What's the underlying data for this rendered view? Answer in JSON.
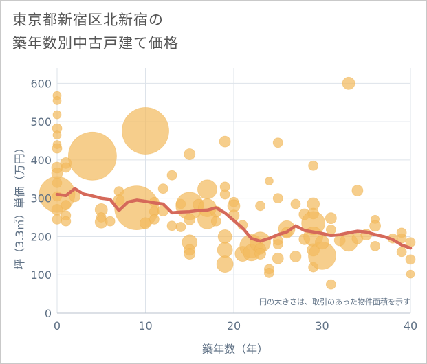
{
  "title": {
    "line1": "東京都新宿区北新宿の",
    "line2": "築年数別中古戸建て価格"
  },
  "chart_data": {
    "type": "scatter",
    "xlabel": "築年数（年）",
    "ylabel": "坪（3.3㎡）単価（万円）",
    "xlim": [
      0,
      40
    ],
    "ylim": [
      0,
      640
    ],
    "xticks": [
      0,
      10,
      20,
      30,
      40
    ],
    "yticks": [
      0,
      100,
      200,
      300,
      400,
      500,
      600
    ],
    "grid": true,
    "annotation": "円の大きさは、取引のあった物件面積を示す",
    "colors": {
      "bubble": "#f3bb60",
      "line": "#d5695a",
      "grid": "#dde3ea",
      "axis_text": "#5f7185"
    },
    "bubbles": [
      {
        "x": 0,
        "y": 568,
        "s": 6
      },
      {
        "x": 0,
        "y": 555,
        "s": 6
      },
      {
        "x": 0,
        "y": 518,
        "s": 6
      },
      {
        "x": 0,
        "y": 482,
        "s": 7
      },
      {
        "x": 0,
        "y": 465,
        "s": 6
      },
      {
        "x": 0,
        "y": 440,
        "s": 6
      },
      {
        "x": 0,
        "y": 430,
        "s": 7
      },
      {
        "x": 0,
        "y": 380,
        "s": 8
      },
      {
        "x": 0,
        "y": 365,
        "s": 8
      },
      {
        "x": 0,
        "y": 340,
        "s": 7
      },
      {
        "x": 0,
        "y": 305,
        "s": 7
      },
      {
        "x": 0,
        "y": 270,
        "s": 8
      },
      {
        "x": 0,
        "y": 245,
        "s": 7
      },
      {
        "x": 0,
        "y": 310,
        "s": 26
      },
      {
        "x": 1,
        "y": 392,
        "s": 8
      },
      {
        "x": 1,
        "y": 380,
        "s": 7
      },
      {
        "x": 1,
        "y": 282,
        "s": 7
      },
      {
        "x": 1,
        "y": 255,
        "s": 7
      },
      {
        "x": 1,
        "y": 240,
        "s": 7
      },
      {
        "x": 2,
        "y": 305,
        "s": 8
      },
      {
        "x": 4,
        "y": 410,
        "s": 35
      },
      {
        "x": 5,
        "y": 270,
        "s": 9
      },
      {
        "x": 5,
        "y": 250,
        "s": 7
      },
      {
        "x": 5,
        "y": 238,
        "s": 9
      },
      {
        "x": 6,
        "y": 240,
        "s": 7
      },
      {
        "x": 7,
        "y": 318,
        "s": 7
      },
      {
        "x": 7,
        "y": 295,
        "s": 8
      },
      {
        "x": 9,
        "y": 275,
        "s": 32
      },
      {
        "x": 10,
        "y": 476,
        "s": 34
      },
      {
        "x": 10,
        "y": 235,
        "s": 8
      },
      {
        "x": 11,
        "y": 290,
        "s": 7
      },
      {
        "x": 11,
        "y": 265,
        "s": 7
      },
      {
        "x": 11,
        "y": 245,
        "s": 7
      },
      {
        "x": 12,
        "y": 325,
        "s": 7
      },
      {
        "x": 12,
        "y": 268,
        "s": 8
      },
      {
        "x": 13,
        "y": 360,
        "s": 7
      },
      {
        "x": 13,
        "y": 228,
        "s": 7
      },
      {
        "x": 14,
        "y": 285,
        "s": 7
      },
      {
        "x": 14,
        "y": 225,
        "s": 7
      },
      {
        "x": 15,
        "y": 415,
        "s": 8
      },
      {
        "x": 15,
        "y": 280,
        "s": 20
      },
      {
        "x": 15,
        "y": 245,
        "s": 8
      },
      {
        "x": 15,
        "y": 185,
        "s": 11
      },
      {
        "x": 15,
        "y": 165,
        "s": 8
      },
      {
        "x": 15,
        "y": 155,
        "s": 8
      },
      {
        "x": 16,
        "y": 283,
        "s": 8
      },
      {
        "x": 17,
        "y": 323,
        "s": 14
      },
      {
        "x": 17,
        "y": 275,
        "s": 13
      },
      {
        "x": 17,
        "y": 245,
        "s": 14
      },
      {
        "x": 18,
        "y": 265,
        "s": 8
      },
      {
        "x": 18,
        "y": 240,
        "s": 7
      },
      {
        "x": 19,
        "y": 448,
        "s": 8
      },
      {
        "x": 19,
        "y": 330,
        "s": 7
      },
      {
        "x": 19,
        "y": 310,
        "s": 7
      },
      {
        "x": 19,
        "y": 200,
        "s": 10
      },
      {
        "x": 19,
        "y": 165,
        "s": 11
      },
      {
        "x": 19,
        "y": 128,
        "s": 12
      },
      {
        "x": 20,
        "y": 290,
        "s": 7
      },
      {
        "x": 20,
        "y": 280,
        "s": 9
      },
      {
        "x": 20,
        "y": 255,
        "s": 8
      },
      {
        "x": 21,
        "y": 230,
        "s": 7
      },
      {
        "x": 21,
        "y": 155,
        "s": 11
      },
      {
        "x": 22,
        "y": 175,
        "s": 17
      },
      {
        "x": 22,
        "y": 158,
        "s": 12
      },
      {
        "x": 23,
        "y": 280,
        "s": 7
      },
      {
        "x": 23,
        "y": 185,
        "s": 15
      },
      {
        "x": 23,
        "y": 168,
        "s": 8
      },
      {
        "x": 23,
        "y": 155,
        "s": 8
      },
      {
        "x": 24,
        "y": 345,
        "s": 6
      },
      {
        "x": 24,
        "y": 115,
        "s": 7
      },
      {
        "x": 24,
        "y": 105,
        "s": 7
      },
      {
        "x": 25,
        "y": 445,
        "s": 7
      },
      {
        "x": 25,
        "y": 300,
        "s": 7
      },
      {
        "x": 25,
        "y": 190,
        "s": 7
      },
      {
        "x": 25,
        "y": 180,
        "s": 7
      },
      {
        "x": 25,
        "y": 143,
        "s": 8
      },
      {
        "x": 26,
        "y": 220,
        "s": 12
      },
      {
        "x": 26,
        "y": 210,
        "s": 8
      },
      {
        "x": 27,
        "y": 285,
        "s": 7
      },
      {
        "x": 27,
        "y": 148,
        "s": 8
      },
      {
        "x": 28,
        "y": 258,
        "s": 8
      },
      {
        "x": 28,
        "y": 193,
        "s": 8
      },
      {
        "x": 29,
        "y": 385,
        "s": 7
      },
      {
        "x": 29,
        "y": 285,
        "s": 9
      },
      {
        "x": 29,
        "y": 260,
        "s": 8
      },
      {
        "x": 29,
        "y": 235,
        "s": 17
      },
      {
        "x": 29,
        "y": 200,
        "s": 14
      },
      {
        "x": 29,
        "y": 165,
        "s": 9
      },
      {
        "x": 29,
        "y": 120,
        "s": 7
      },
      {
        "x": 30,
        "y": 150,
        "s": 20
      },
      {
        "x": 30,
        "y": 185,
        "s": 10
      },
      {
        "x": 31,
        "y": 248,
        "s": 8
      },
      {
        "x": 31,
        "y": 218,
        "s": 7
      },
      {
        "x": 31,
        "y": 75,
        "s": 7
      },
      {
        "x": 32,
        "y": 190,
        "s": 8
      },
      {
        "x": 33,
        "y": 600,
        "s": 9
      },
      {
        "x": 33,
        "y": 185,
        "s": 13
      },
      {
        "x": 34,
        "y": 320,
        "s": 8
      },
      {
        "x": 34,
        "y": 195,
        "s": 8
      },
      {
        "x": 35,
        "y": 205,
        "s": 8
      },
      {
        "x": 36,
        "y": 245,
        "s": 6
      },
      {
        "x": 36,
        "y": 228,
        "s": 8
      },
      {
        "x": 36,
        "y": 175,
        "s": 7
      },
      {
        "x": 38,
        "y": 195,
        "s": 7
      },
      {
        "x": 39,
        "y": 210,
        "s": 7
      },
      {
        "x": 39,
        "y": 195,
        "s": 7
      },
      {
        "x": 39,
        "y": 160,
        "s": 7
      },
      {
        "x": 40,
        "y": 185,
        "s": 7
      },
      {
        "x": 40,
        "y": 140,
        "s": 7
      },
      {
        "x": 40,
        "y": 102,
        "s": 6
      }
    ],
    "series": [
      {
        "x": [
          0,
          1,
          2,
          3,
          4,
          5,
          6,
          7,
          8,
          9,
          10,
          11,
          12,
          13,
          14,
          15,
          16,
          17,
          18,
          19,
          20,
          21,
          22,
          23,
          24,
          25,
          26,
          27,
          28,
          29,
          30,
          31,
          32,
          33,
          34,
          35,
          36,
          37,
          38,
          39,
          40
        ],
        "y": [
          310,
          307,
          325,
          311,
          306,
          300,
          297,
          268,
          290,
          295,
          292,
          288,
          285,
          262,
          264,
          265,
          268,
          269,
          275,
          262,
          242,
          222,
          195,
          188,
          195,
          205,
          212,
          228,
          216,
          212,
          208,
          203,
          205,
          210,
          214,
          212,
          205,
          200,
          192,
          178,
          170
        ]
      }
    ]
  }
}
